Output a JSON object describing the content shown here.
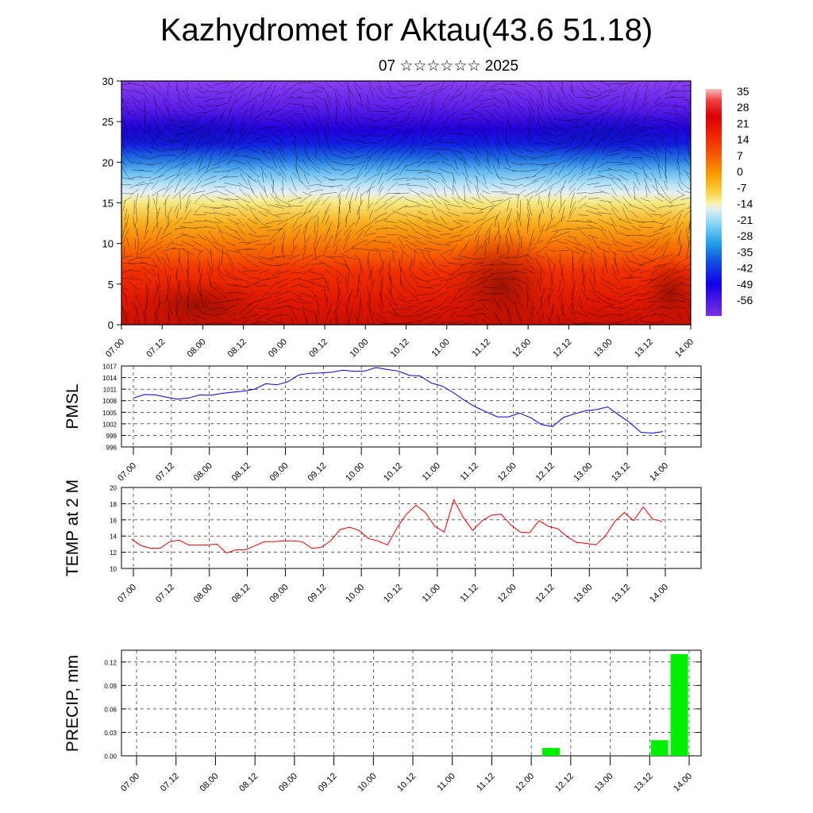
{
  "header": {
    "title": "Kazhydromet for Aktau(43.6 51.18)",
    "subtitle": "07 ☆☆☆☆☆☆ 2025"
  },
  "chart_data": [
    {
      "type": "heatmap",
      "panel": "cross-section",
      "ylim": [
        0,
        30
      ],
      "yticks": [
        0,
        5,
        10,
        15,
        20,
        25,
        30
      ],
      "x_ticks": [
        "07.00",
        "07.12",
        "08.00",
        "08.12",
        "09.00",
        "09.12",
        "10.00",
        "10.12",
        "11.00",
        "11.12",
        "12.00",
        "12.12",
        "13.00",
        "13.12",
        "14.00"
      ],
      "colorbar_labels": [
        "35",
        "28",
        "21",
        "14",
        "7",
        "0",
        "-7",
        "-14",
        "-21",
        "-28",
        "-35",
        "-42",
        "-49",
        "-56"
      ],
      "colors": {
        "warm": "#e81400",
        "hot": "#a01000",
        "cold": "#2010e0",
        "top": "#8a30f0",
        "mid": "#f8e880",
        "light": "#c8e8f8"
      }
    },
    {
      "type": "line",
      "panel": "pmsl",
      "ylabel": "PMSL",
      "ylim": [
        996,
        1017
      ],
      "yticks": [
        996,
        999,
        1002,
        1005,
        1008,
        1011,
        1014,
        1017
      ],
      "x_ticks": [
        "07.00",
        "07.12",
        "08.00",
        "08.12",
        "09.00",
        "09.12",
        "10.00",
        "10.12",
        "11.00",
        "11.12",
        "12.00",
        "12.12",
        "13.00",
        "13.12",
        "14.00"
      ],
      "color": "#0000cc",
      "values": [
        1008.7,
        1009.6,
        1009.5,
        1008.9,
        1008.4,
        1008.7,
        1009.5,
        1009.4,
        1009.9,
        1010.2,
        1010.5,
        1011.0,
        1012.4,
        1012.1,
        1012.9,
        1014.7,
        1015.1,
        1015.2,
        1015.4,
        1015.9,
        1015.6,
        1015.7,
        1016.6,
        1016.1,
        1015.7,
        1014.6,
        1014.4,
        1012.6,
        1011.8,
        1010.1,
        1008.1,
        1006.4,
        1005.1,
        1003.8,
        1003.8,
        1004.8,
        1003.6,
        1001.8,
        1001.3,
        1003.7,
        1004.6,
        1005.4,
        1005.7,
        1006.4,
        1004.3,
        1002.3,
        999.8,
        999.6,
        1000.0
      ]
    },
    {
      "type": "line",
      "panel": "temp",
      "ylabel": "TEMP at 2 M",
      "ylim": [
        10,
        20
      ],
      "yticks": [
        10,
        12,
        14,
        16,
        18,
        20
      ],
      "x_ticks": [
        "07.00",
        "07.12",
        "08.00",
        "08.12",
        "09.00",
        "09.12",
        "10.00",
        "10.12",
        "11.00",
        "11.12",
        "12.00",
        "12.12",
        "13.00",
        "13.12",
        "14.00"
      ],
      "color": "#e00000",
      "values": [
        13.6,
        12.8,
        12.5,
        12.5,
        13.3,
        13.5,
        12.9,
        12.9,
        12.9,
        13.0,
        11.9,
        12.3,
        12.3,
        12.8,
        13.3,
        13.3,
        13.4,
        13.4,
        13.3,
        12.5,
        12.6,
        13.4,
        14.8,
        15.1,
        14.7,
        13.7,
        13.4,
        12.9,
        15.0,
        16.7,
        17.8,
        16.9,
        15.2,
        14.5,
        18.5,
        16.3,
        14.7,
        15.9,
        16.6,
        16.7,
        15.4,
        14.5,
        14.4,
        15.9,
        15.2,
        14.9,
        13.9,
        13.2,
        13.1,
        12.9,
        14.0,
        15.8,
        16.9,
        15.9,
        17.6,
        16.1,
        15.8
      ]
    },
    {
      "type": "bar",
      "panel": "precip",
      "ylabel": "PRECIP, mm",
      "ylim": [
        0,
        0.135
      ],
      "yticks": [
        "0.00",
        "0.03",
        "0.06",
        "0.09",
        "0.12"
      ],
      "x_ticks": [
        "07.00",
        "07.12",
        "08.00",
        "08.12",
        "09.00",
        "09.12",
        "10.00",
        "10.12",
        "11.00",
        "11.12",
        "12.00",
        "12.12",
        "13.00",
        "13.12",
        "14.00"
      ],
      "color": "#00ee00",
      "bars": [
        {
          "t": 12.25,
          "value": 0.01
        },
        {
          "t": 13.625,
          "value": 0.02
        },
        {
          "t": 13.875,
          "value": 0.13
        }
      ]
    }
  ]
}
